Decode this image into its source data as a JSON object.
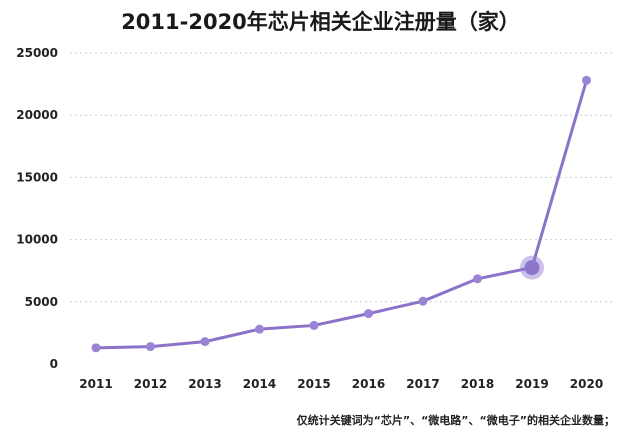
{
  "chart_data": {
    "type": "line",
    "title": "2011-2020年芯片相关企业注册量（家）",
    "x": [
      "2011",
      "2012",
      "2013",
      "2014",
      "2015",
      "2016",
      "2017",
      "2018",
      "2019",
      "2020"
    ],
    "series": [
      {
        "values": [
          1300,
          1400,
          1800,
          2800,
          3100,
          4050,
          5050,
          6850,
          7750,
          22800
        ]
      }
    ],
    "highlight_index": 8,
    "yticks": [
      "0",
      "5000",
      "10000",
      "15000",
      "20000",
      "25000"
    ],
    "ylim": [
      0,
      25000
    ],
    "grid": "horizontal-dashed",
    "colors": {
      "line": "#8b73c9",
      "marker": "#9a84d3",
      "highlight": "#8d76cc"
    },
    "footnote": "仅统计关键词为“芯片”、“微电路”、“微电子”的相关企业数量；"
  }
}
